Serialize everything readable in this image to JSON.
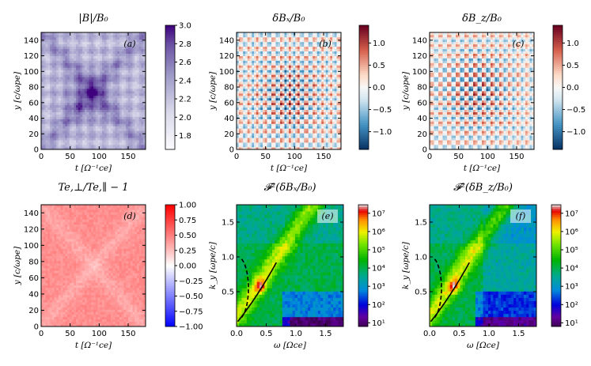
{
  "chart_data": [
    {
      "type": "heatmap",
      "panel_label": "(a)",
      "title": "|B|/B₀",
      "xlabel": "t [Ω⁻¹ce]",
      "ylabel": "y [c/ωpe]",
      "xlim": [
        0,
        180
      ],
      "ylim": [
        0,
        150
      ],
      "xticks": [
        "0",
        "50",
        "100",
        "150"
      ],
      "yticks": [
        "0",
        "20",
        "40",
        "60",
        "80",
        "100",
        "120",
        "140"
      ],
      "colormap": "purples",
      "colorbar_range": [
        1.65,
        3.0
      ],
      "colorbar_ticks": [
        "1.8",
        "2.0",
        "2.2",
        "2.4",
        "2.6",
        "2.8",
        "3.0"
      ]
    },
    {
      "type": "heatmap",
      "panel_label": "(b)",
      "title": "δBₓ/B₀",
      "xlabel": "t [Ω⁻¹ce]",
      "ylabel": "y [c/ωpe]",
      "xlim": [
        0,
        180
      ],
      "ylim": [
        0,
        150
      ],
      "xticks": [
        "0",
        "50",
        "100",
        "150"
      ],
      "yticks": [
        "0",
        "20",
        "40",
        "60",
        "80",
        "100",
        "120",
        "140"
      ],
      "colormap": "red-blue diverging",
      "colorbar_range": [
        -1.4,
        1.4
      ],
      "colorbar_ticks": [
        "−1.0",
        "−0.5",
        "0.0",
        "0.5",
        "1.0"
      ]
    },
    {
      "type": "heatmap",
      "panel_label": "(c)",
      "title": "δB_z/B₀",
      "xlabel": "t [Ω⁻¹ce]",
      "ylabel": "y [c/ωpe]",
      "xlim": [
        0,
        180
      ],
      "ylim": [
        0,
        150
      ],
      "xticks": [
        "0",
        "50",
        "100",
        "150"
      ],
      "yticks": [
        "0",
        "20",
        "40",
        "60",
        "80",
        "100",
        "120",
        "140"
      ],
      "colormap": "red-blue diverging",
      "colorbar_range": [
        -1.4,
        1.4
      ],
      "colorbar_ticks": [
        "−1.0",
        "−0.5",
        "0.0",
        "0.5",
        "1.0"
      ]
    },
    {
      "type": "heatmap",
      "panel_label": "(d)",
      "title": "Te,⊥/Te,∥ − 1",
      "xlabel": "t [Ω⁻¹ce]",
      "ylabel": "y [c/ωpe]",
      "xlim": [
        0,
        180
      ],
      "ylim": [
        0,
        150
      ],
      "xticks": [
        "0",
        "50",
        "100",
        "150"
      ],
      "yticks": [
        "0",
        "20",
        "40",
        "60",
        "80",
        "100",
        "120",
        "140"
      ],
      "colormap": "blue-white-red",
      "colorbar_range": [
        -1.0,
        1.0
      ],
      "colorbar_ticks": [
        "−1.00",
        "−0.75",
        "−0.50",
        "−0.25",
        "0.00",
        "0.25",
        "0.50",
        "0.75",
        "1.00"
      ]
    },
    {
      "type": "heatmap",
      "panel_label": "(e)",
      "title": "𝓕²(δBₓ/B₀)",
      "xlabel": "ω [Ωce]",
      "ylabel": "k_y [ωpe/c]",
      "xlim": [
        0,
        1.8
      ],
      "ylim": [
        0,
        1.75
      ],
      "xticks": [
        "0.0",
        "0.5",
        "1.0",
        "1.5"
      ],
      "yticks": [
        "0.5",
        "1.0",
        "1.5"
      ],
      "colormap": "nipy_spectral (log)",
      "colorbar_ticks": [
        "10¹",
        "10²",
        "10³",
        "10⁴",
        "10⁵",
        "10⁶",
        "10⁷"
      ],
      "curves": [
        "solid dispersion",
        "dashed dispersion"
      ]
    },
    {
      "type": "heatmap",
      "panel_label": "(f)",
      "title": "𝓕²(δB_z/B₀)",
      "xlabel": "ω [Ωce]",
      "ylabel": "k_y [ωpe/c]",
      "xlim": [
        0,
        1.8
      ],
      "ylim": [
        0,
        1.75
      ],
      "xticks": [
        "0.0",
        "0.5",
        "1.0",
        "1.5"
      ],
      "yticks": [
        "0.5",
        "1.0",
        "1.5"
      ],
      "colormap": "nipy_spectral (log)",
      "colorbar_ticks": [
        "10¹",
        "10²",
        "10³",
        "10⁴",
        "10⁵",
        "10⁶",
        "10⁷"
      ],
      "curves": [
        "solid dispersion",
        "dashed dispersion"
      ]
    }
  ]
}
